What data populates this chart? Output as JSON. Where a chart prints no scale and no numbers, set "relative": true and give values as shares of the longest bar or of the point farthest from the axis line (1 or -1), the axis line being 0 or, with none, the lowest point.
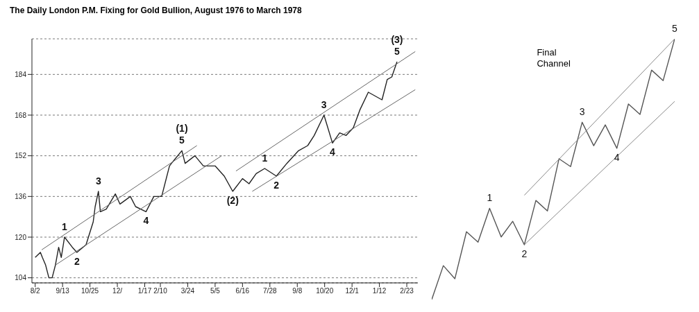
{
  "chart_data": [
    {
      "type": "line",
      "title": "The Daily London P.M. Fixing for Gold Bullion, August 1976 to March 1978",
      "xlim": [
        "1976-07-28",
        "1978-03-12"
      ],
      "ylim": [
        102,
        198
      ],
      "xticks": [
        {
          "value": "1976-08-02",
          "label": "8/2"
        },
        {
          "value": "1976-09-13",
          "label": "9/13"
        },
        {
          "value": "1976-10-25",
          "label": "10/25"
        },
        {
          "value": "1976-12-06",
          "label": "12/"
        },
        {
          "value": "1977-01-17",
          "label": "1/17"
        },
        {
          "value": "1977-02-10",
          "label": "2/10"
        },
        {
          "value": "1977-03-24",
          "label": "3/24"
        },
        {
          "value": "1977-05-05",
          "label": "5/5"
        },
        {
          "value": "1977-06-16",
          "label": "6/16"
        },
        {
          "value": "1977-07-28",
          "label": "7/28"
        },
        {
          "value": "1977-09-08",
          "label": "9/8"
        },
        {
          "value": "1977-10-20",
          "label": "10/20"
        },
        {
          "value": "1977-12-01",
          "label": "12/1"
        },
        {
          "value": "1978-01-12",
          "label": "1/12"
        },
        {
          "value": "1978-02-23",
          "label": "2/23"
        }
      ],
      "yticks": [
        104,
        120,
        136,
        152,
        168,
        184
      ],
      "grid": "y",
      "marker": "none",
      "line_style": "solid",
      "series": [
        {
          "color": "#222222",
          "x": [
            "1976-08-02",
            "1976-08-10",
            "1976-08-13",
            "1976-08-18",
            "1976-08-23",
            "1976-08-28",
            "1976-09-02",
            "1976-09-07",
            "1976-09-11",
            "1976-09-16",
            "1976-09-28",
            "1976-10-05",
            "1976-10-19",
            "1976-10-30",
            "1976-11-02",
            "1976-11-07",
            "1976-11-10",
            "1976-11-19",
            "1976-12-03",
            "1976-12-10",
            "1976-12-26",
            "1977-01-03",
            "1977-01-19",
            "1977-01-31",
            "1977-02-12",
            "1977-02-24",
            "1977-02-27",
            "1977-03-15",
            "1977-03-20",
            "1977-04-04",
            "1977-04-17",
            "1977-05-05",
            "1977-05-19",
            "1977-06-01",
            "1977-06-16",
            "1977-06-26",
            "1977-07-07",
            "1977-07-20",
            "1977-08-07",
            "1977-08-23",
            "1977-09-10",
            "1977-09-24",
            "1977-10-04",
            "1977-10-19",
            "1977-11-01",
            "1977-11-12",
            "1977-11-22",
            "1977-12-03",
            "1977-12-13",
            "1977-12-26",
            "1978-01-16",
            "1978-01-24",
            "1978-01-31",
            "1978-02-08"
          ],
          "values": [
            112,
            114,
            112,
            109,
            104,
            104,
            109,
            116,
            112,
            120,
            116,
            114,
            117,
            126,
            132,
            138,
            130,
            131,
            137,
            133,
            136,
            132,
            130,
            136,
            136,
            148,
            149,
            154,
            149,
            152,
            148,
            148,
            144,
            138,
            143,
            141,
            145,
            147,
            144,
            149,
            154,
            156,
            160,
            168,
            157,
            161,
            160,
            163,
            170,
            177,
            174,
            182,
            183,
            189
          ]
        },
        {
          "color": "#666666",
          "x": [
            "1976-08-12",
            "1977-04-07"
          ],
          "values": [
            115,
            156
          ]
        },
        {
          "color": "#666666",
          "x": [
            "1976-09-02",
            "1977-05-15"
          ],
          "values": [
            109,
            152
          ]
        },
        {
          "color": "#666666",
          "x": [
            "1977-06-06",
            "1978-03-08"
          ],
          "values": [
            146,
            193
          ]
        },
        {
          "color": "#666666",
          "x": [
            "1977-07-01",
            "1978-03-08"
          ],
          "values": [
            138,
            178
          ]
        }
      ],
      "annotations": [
        {
          "text": "1",
          "x": "1976-09-16",
          "y": 120
        },
        {
          "text": "2",
          "x": "1976-10-05",
          "y": 114
        },
        {
          "text": "3",
          "x": "1976-11-07",
          "y": 138
        },
        {
          "text": "4",
          "x": "1977-01-19",
          "y": 130
        },
        {
          "text": "5",
          "x": "1977-03-15",
          "y": 154
        },
        {
          "text": "(1)",
          "x": "1977-03-15",
          "y": 154
        },
        {
          "text": "(2)",
          "x": "1977-06-01",
          "y": 138
        },
        {
          "text": "1",
          "x": "1977-07-20",
          "y": 147
        },
        {
          "text": "2",
          "x": "1977-08-07",
          "y": 144
        },
        {
          "text": "3",
          "x": "1977-10-19",
          "y": 168
        },
        {
          "text": "4",
          "x": "1977-11-01",
          "y": 157
        },
        {
          "text": "5",
          "x": "1978-02-08",
          "y": 189
        },
        {
          "text": "(3)",
          "x": "1978-02-08",
          "y": 189
        }
      ]
    },
    {
      "type": "line",
      "relative": true,
      "tick_labels": false,
      "marker": "none",
      "line_style": "solid",
      "categories": [
        null,
        null,
        null,
        null,
        null,
        null,
        null,
        null,
        null,
        null,
        null,
        null,
        null,
        null,
        null,
        null,
        null,
        null,
        null,
        null,
        null,
        null
      ],
      "series": [
        {
          "color": "#555555",
          "values": [
            0,
            0.13,
            0.08,
            0.26,
            0.22,
            0.35,
            0.24,
            0.3,
            0.21,
            0.38,
            0.34,
            0.54,
            0.51,
            0.68,
            0.59,
            0.67,
            0.58,
            0.75,
            0.71,
            0.88,
            0.84,
            1
          ]
        },
        {
          "color": "#888888",
          "values": [
            null,
            null,
            null,
            null,
            null,
            null,
            null,
            null,
            0.4,
            null,
            null,
            null,
            null,
            null,
            null,
            null,
            null,
            null,
            null,
            null,
            null,
            1
          ]
        },
        {
          "color": "#888888",
          "values": [
            null,
            null,
            null,
            null,
            null,
            null,
            null,
            null,
            0.21,
            null,
            null,
            null,
            null,
            null,
            null,
            null,
            null,
            null,
            null,
            null,
            null,
            0.76
          ]
        }
      ],
      "annotations": [
        "Final Channel",
        {
          "text": "1",
          "y": 0.35
        },
        {
          "text": "2",
          "y": 0.21
        },
        {
          "text": "3",
          "y": 0.68
        },
        {
          "text": "4",
          "y": 0.58
        },
        {
          "text": "5",
          "y": 1
        }
      ]
    }
  ]
}
